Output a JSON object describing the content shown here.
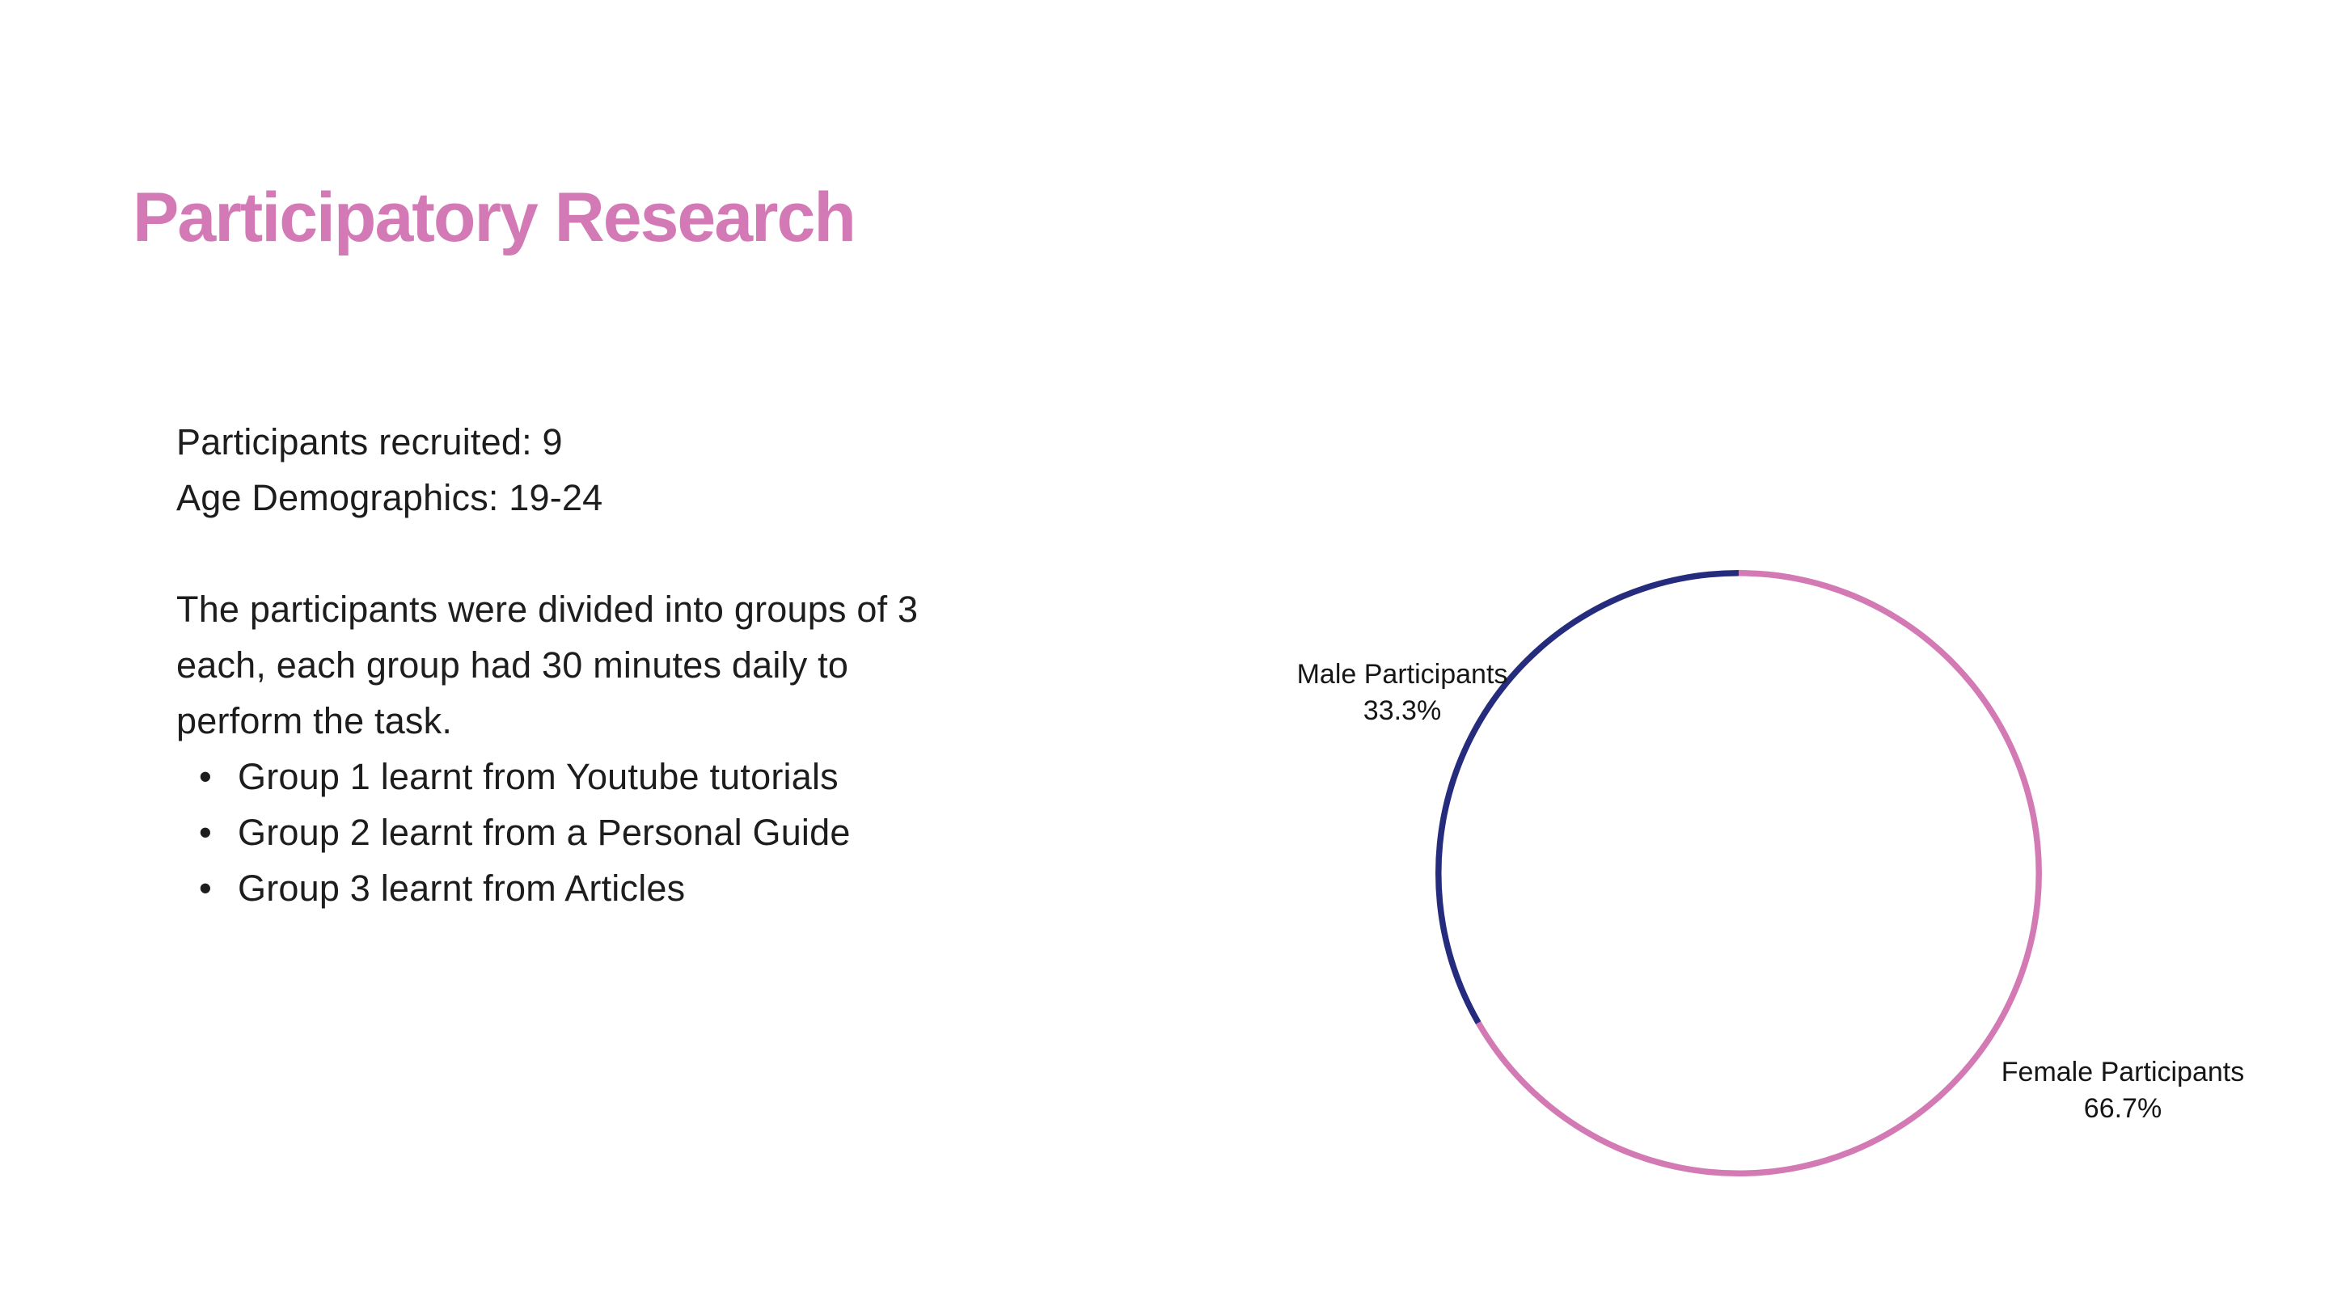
{
  "page": {
    "background_color": "#ffffff"
  },
  "title": {
    "text": "Participatory Research",
    "color": "#d37ab6"
  },
  "body": {
    "text_color": "#1d1d1d",
    "stats": [
      "Participants recruited: 9",
      "Age Demographics: 19-24"
    ],
    "paragraph_lines": [
      "The participants were divided into groups of 3",
      "each, each group had 30 minutes daily to",
      "perform the task."
    ],
    "bullets": [
      "Group 1 learnt from Youtube tutorials",
      "Group 2 learnt from a Personal Guide",
      "Group 3 learnt from Articles"
    ]
  },
  "chart_data": {
    "type": "pie",
    "subtype": "donut",
    "start_angle_deg": 0,
    "direction": "clockwise",
    "inner_radius_ratio": 0.49,
    "legend": "none",
    "labels_position": "outside",
    "slices": [
      {
        "label": "Female Participants",
        "value": 66.7,
        "percent_label": "66.7%",
        "color": "#d379b4"
      },
      {
        "label": "Male Participants",
        "value": 33.3,
        "percent_label": "33.3%",
        "color": "#252c7d"
      }
    ]
  }
}
